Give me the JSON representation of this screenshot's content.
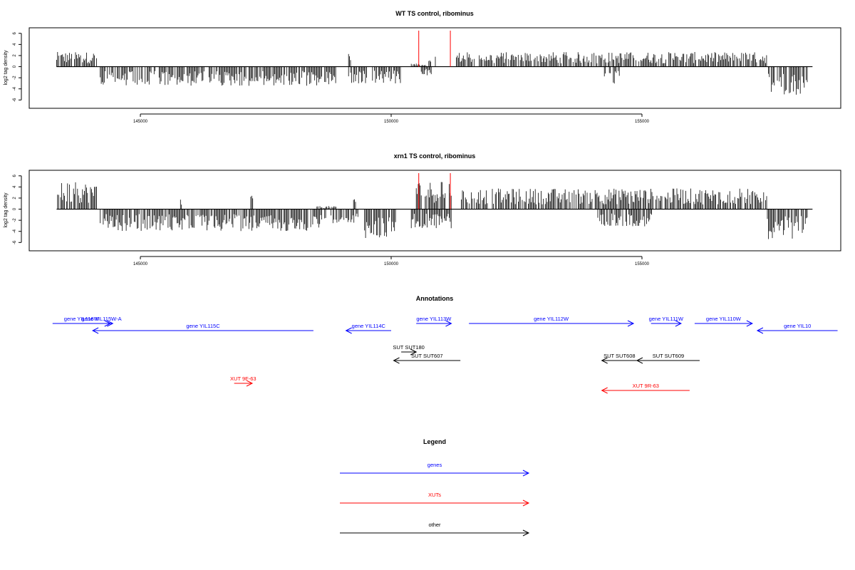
{
  "chart_data": [
    {
      "type": "bar",
      "title": "WT TS control, ribominus",
      "ylabel": "log2 tag density",
      "xlabel": "",
      "xlim": [
        143300,
        158800
      ],
      "ylim": [
        -7.5,
        7
      ],
      "xticks": [
        145000,
        150000,
        155000
      ],
      "yticks": [
        -6,
        -4,
        -2,
        0,
        2,
        4,
        6
      ],
      "grid": false,
      "series": [
        {
          "strand": "+",
          "color": "#000000",
          "regions": [
            [
              143330,
              144130,
              2.4
            ],
            [
              149150,
              149200,
              2.8
            ],
            [
              150400,
              150700,
              0.5
            ],
            [
              150750,
              150800,
              1.2
            ],
            [
              150880,
              150910,
              3.5
            ],
            [
              151300,
              157500,
              2.4
            ]
          ]
        },
        {
          "strand": "-",
          "color": "#000000",
          "regions": [
            [
              144200,
              148900,
              -3.2
            ],
            [
              149150,
              150200,
              -2.8
            ],
            [
              150600,
              150800,
              -1.5
            ],
            [
              154250,
              154550,
              -3.0
            ],
            [
              157500,
              158300,
              -4.6
            ]
          ]
        }
      ],
      "markers": {
        "color": "#ff0000",
        "x": [
          150550,
          151180
        ]
      }
    },
    {
      "type": "bar",
      "title": "xrn1 TS control, ribominus",
      "ylabel": "log2 tag density",
      "xlabel": "",
      "xlim": [
        143300,
        158800
      ],
      "ylim": [
        -7.5,
        7
      ],
      "xticks": [
        145000,
        150000,
        155000
      ],
      "yticks": [
        -6,
        -4,
        -2,
        0,
        2,
        4,
        6
      ],
      "grid": false,
      "series": [
        {
          "strand": "+",
          "color": "#000000",
          "regions": [
            [
              143330,
              144130,
              4.4
            ],
            [
              145800,
              145830,
              1.8
            ],
            [
              147200,
              147240,
              2.2
            ],
            [
              148500,
              148900,
              0.5
            ],
            [
              149250,
              149300,
              2.8
            ],
            [
              150500,
              151250,
              4.6
            ],
            [
              151400,
              157500,
              3.4
            ]
          ]
        },
        {
          "strand": "-",
          "color": "#000000",
          "regions": [
            [
              144200,
              148700,
              -3.6
            ],
            [
              148800,
              149350,
              -2.4
            ],
            [
              149450,
              150100,
              -4.8
            ],
            [
              150400,
              151200,
              -3.2
            ],
            [
              154100,
              155200,
              -2.8
            ],
            [
              157500,
              158300,
              -5.0
            ]
          ]
        }
      ],
      "markers": {
        "color": "#ff0000",
        "x": [
          150550,
          151180
        ]
      }
    }
  ],
  "annotations": {
    "title": "Annotations",
    "features": [
      {
        "label": "gene YIL116W",
        "color": "#0000ff",
        "start": 143250,
        "end": 144400,
        "dir": "+",
        "row": 0
      },
      {
        "label": "gene YIL115W-A",
        "color": "#0000ff",
        "start": 144000,
        "end": 144450,
        "dir": "+",
        "row": 0
      },
      {
        "label": "gene YIL115C",
        "color": "#0000ff",
        "start": 144050,
        "end": 148450,
        "dir": "-",
        "row": 1
      },
      {
        "label": "gene YIL114C",
        "color": "#0000ff",
        "start": 149100,
        "end": 150000,
        "dir": "-",
        "row": 1
      },
      {
        "label": "gene YIL113W",
        "color": "#0000ff",
        "start": 150500,
        "end": 151200,
        "dir": "+",
        "row": 0
      },
      {
        "label": "gene YIL112W",
        "color": "#0000ff",
        "start": 151550,
        "end": 154830,
        "dir": "+",
        "row": 0
      },
      {
        "label": "gene YIL111W",
        "color": "#0000ff",
        "start": 155180,
        "end": 155780,
        "dir": "+",
        "row": 0
      },
      {
        "label": "gene YIL110W",
        "color": "#0000ff",
        "start": 156050,
        "end": 157200,
        "dir": "+",
        "row": 0
      },
      {
        "label": "gene YIL10",
        "color": "#0000ff",
        "start": 157300,
        "end": 158900,
        "dir": "-",
        "row": 1
      },
      {
        "label": "SUT SUT180",
        "color": "#000000",
        "start": 150200,
        "end": 150500,
        "dir": "+",
        "row": 2
      },
      {
        "label": "SUT SUT607",
        "color": "#000000",
        "start": 150050,
        "end": 151380,
        "dir": "-",
        "row": 3
      },
      {
        "label": "SUT SUT608",
        "color": "#000000",
        "start": 154200,
        "end": 154900,
        "dir": "-",
        "row": 3
      },
      {
        "label": "SUT SUT609",
        "color": "#000000",
        "start": 154900,
        "end": 156150,
        "dir": "-",
        "row": 3
      },
      {
        "label": "XUT 9F-63",
        "color": "#ff0000",
        "start": 146870,
        "end": 147230,
        "dir": "+",
        "row": 4
      },
      {
        "label": "XUT 9R-63",
        "color": "#ff0000",
        "start": 154200,
        "end": 155950,
        "dir": "-",
        "row": 5
      }
    ]
  },
  "legend": {
    "title": "Legend",
    "items": [
      {
        "label": "genes",
        "color": "#0000ff"
      },
      {
        "label": "XUTs",
        "color": "#ff0000"
      },
      {
        "label": "other",
        "color": "#000000"
      }
    ]
  }
}
